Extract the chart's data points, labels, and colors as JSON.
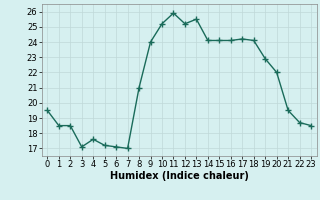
{
  "x": [
    0,
    1,
    2,
    3,
    4,
    5,
    6,
    7,
    8,
    9,
    10,
    11,
    12,
    13,
    14,
    15,
    16,
    17,
    18,
    19,
    20,
    21,
    22,
    23
  ],
  "y": [
    19.5,
    18.5,
    18.5,
    17.1,
    17.6,
    17.2,
    17.1,
    17.0,
    21.0,
    24.0,
    25.2,
    25.9,
    25.2,
    25.5,
    24.1,
    24.1,
    24.1,
    24.2,
    24.1,
    22.9,
    22.0,
    19.5,
    18.7,
    18.5
  ],
  "line_color": "#1a6b5a",
  "marker": "+",
  "marker_size": 4,
  "marker_lw": 1.0,
  "bg_color": "#d6f0f0",
  "grid_color": "#c0d8d8",
  "xlabel": "Humidex (Indice chaleur)",
  "xlim": [
    -0.5,
    23.5
  ],
  "ylim": [
    16.5,
    26.5
  ],
  "yticks": [
    17,
    18,
    19,
    20,
    21,
    22,
    23,
    24,
    25,
    26
  ],
  "xticks": [
    0,
    1,
    2,
    3,
    4,
    5,
    6,
    7,
    8,
    9,
    10,
    11,
    12,
    13,
    14,
    15,
    16,
    17,
    18,
    19,
    20,
    21,
    22,
    23
  ],
  "label_fontsize": 7,
  "tick_fontsize": 6,
  "line_width": 1.0
}
